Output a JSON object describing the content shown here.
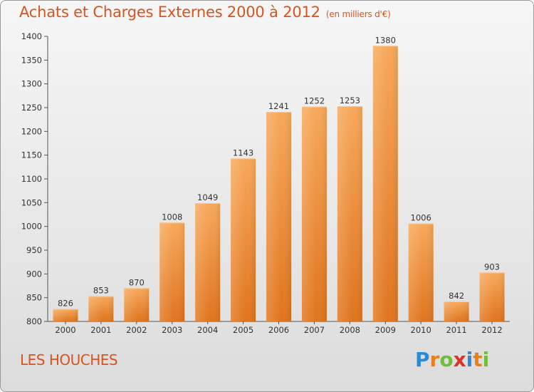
{
  "header": {
    "title": "Achats et Charges Externes 2000 à 2012",
    "unit": "(en milliers d'€)"
  },
  "footer": {
    "commune": "LES HOUCHES",
    "logo_text": "Proxiti"
  },
  "colors": {
    "title": "#d9531e",
    "bar_light": "#f7a85a",
    "bar_dark": "#e0741d",
    "axis_text": "#333333"
  },
  "chart_data": {
    "type": "bar",
    "title": "Achats et Charges Externes 2000 à 2012",
    "xlabel": "",
    "ylabel": "",
    "categories": [
      "2000",
      "2001",
      "2002",
      "2003",
      "2004",
      "2005",
      "2006",
      "2007",
      "2008",
      "2009",
      "2010",
      "2011",
      "2012"
    ],
    "values": [
      826,
      853,
      870,
      1008,
      1049,
      1143,
      1241,
      1252,
      1253,
      1380,
      1006,
      842,
      903
    ],
    "ylim": [
      800,
      1400
    ],
    "yticks": [
      800,
      850,
      900,
      950,
      1000,
      1050,
      1100,
      1150,
      1200,
      1250,
      1300,
      1350,
      1400
    ],
    "grid": false,
    "legend": "none"
  }
}
